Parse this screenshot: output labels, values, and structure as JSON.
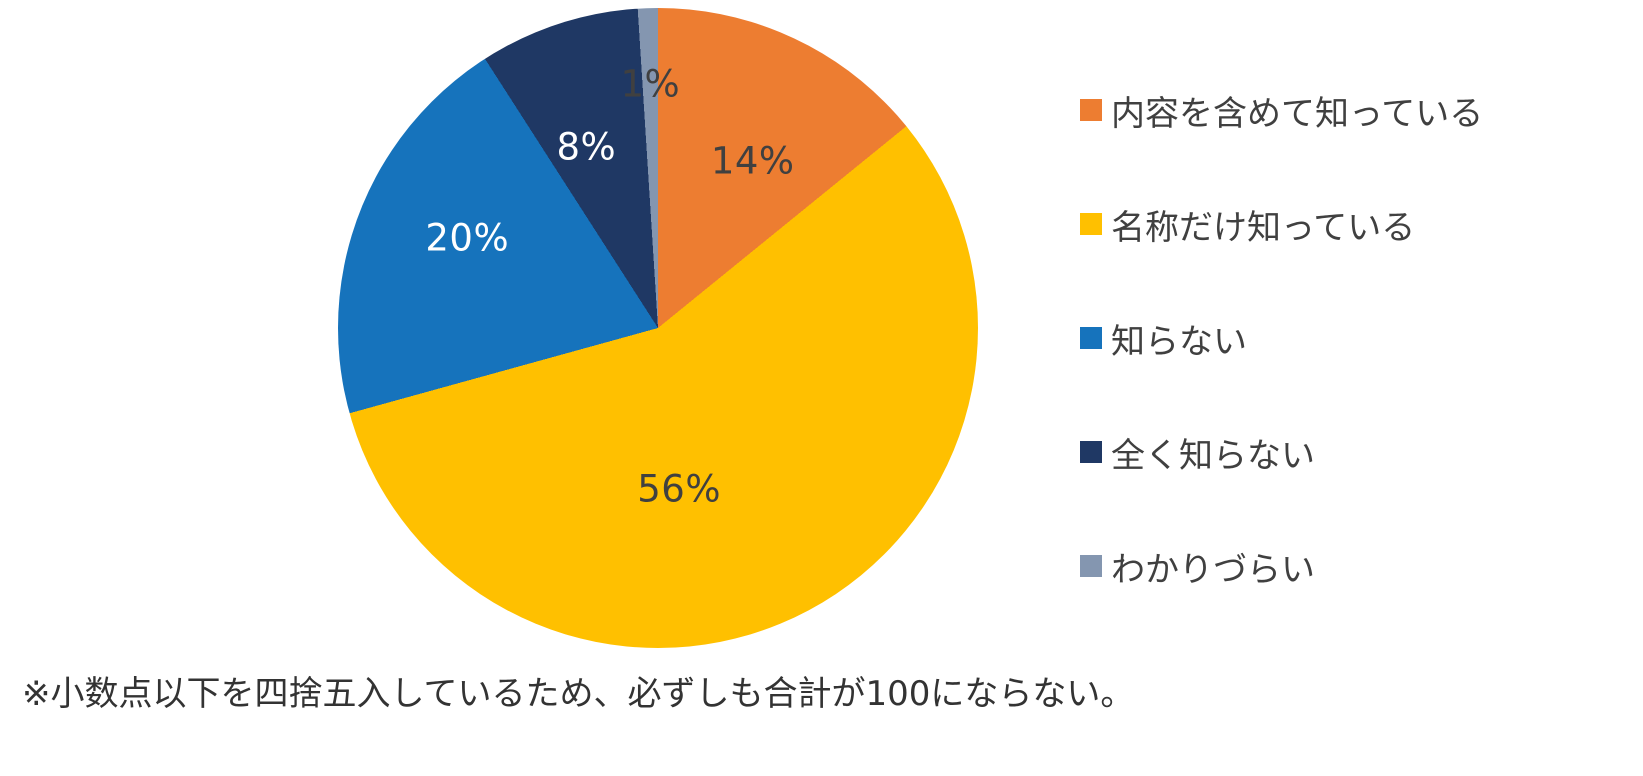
{
  "chart_data": {
    "type": "pie",
    "title": "",
    "start_angle_deg": 0,
    "direction": "clockwise",
    "legend_position": "right",
    "values_sum_note": "values sum to 99 due to rounding",
    "slices": [
      {
        "label": "内容を含めて知っている",
        "value": 14,
        "display": "14%",
        "color": "#ED7D31"
      },
      {
        "label": "名称だけ知っている",
        "value": 56,
        "display": "56%",
        "color": "#FFC000"
      },
      {
        "label": "知らない",
        "value": 20,
        "display": "20%",
        "color": "#1673BC"
      },
      {
        "label": "全く知らない",
        "value": 8,
        "display": "8%",
        "color": "#1F3864"
      },
      {
        "label": "わかりづらい",
        "value": 1,
        "display": "1%",
        "color": "#8496B0"
      }
    ],
    "note": "※小数点以下を四捨五入しているため、必ずしも合計が100にならない。"
  }
}
